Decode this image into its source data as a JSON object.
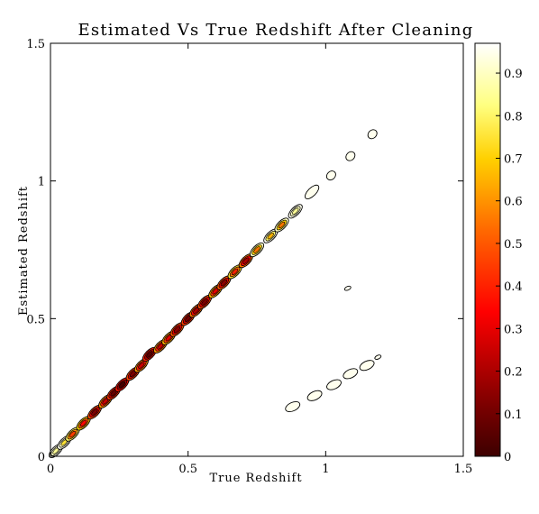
{
  "chart_data": {
    "type": "heatmap",
    "title": "Estimated Vs True Redshift After Cleaning",
    "xlabel": "True Redshift",
    "ylabel": "Estimated Redshift",
    "xlim": [
      0,
      1.5
    ],
    "ylim": [
      0,
      1.5
    ],
    "x_ticks": [
      0,
      0.5,
      1,
      1.5
    ],
    "x_tick_labels": [
      "0",
      "0.5",
      "1",
      "1.5"
    ],
    "y_ticks": [
      0,
      0.5,
      1,
      1.5
    ],
    "y_tick_labels": [
      "0",
      "0.5",
      "1",
      "1.5"
    ],
    "colormap": "hot",
    "colorbar": {
      "min": 0,
      "max": 0.97,
      "ticks": [
        0,
        0.1,
        0.2,
        0.3,
        0.4,
        0.5,
        0.6,
        0.7,
        0.8,
        0.9
      ],
      "tick_labels": [
        "0",
        "0.1",
        "0.2",
        "0.3",
        "0.4",
        "0.5",
        "0.6",
        "0.7",
        "0.8",
        "0.9"
      ]
    },
    "contour_regions": [
      {
        "x": 0.02,
        "y": 0.02,
        "level": 0.85
      },
      {
        "x": 0.05,
        "y": 0.05,
        "level": 0.75
      },
      {
        "x": 0.08,
        "y": 0.08,
        "level": 0.45
      },
      {
        "x": 0.12,
        "y": 0.12,
        "level": 0.35
      },
      {
        "x": 0.16,
        "y": 0.16,
        "level": 0.12
      },
      {
        "x": 0.2,
        "y": 0.2,
        "level": 0.25
      },
      {
        "x": 0.23,
        "y": 0.23,
        "level": 0.08
      },
      {
        "x": 0.26,
        "y": 0.26,
        "level": 0.02
      },
      {
        "x": 0.3,
        "y": 0.3,
        "level": 0.12
      },
      {
        "x": 0.33,
        "y": 0.33,
        "level": 0.25
      },
      {
        "x": 0.36,
        "y": 0.37,
        "level": 0.05
      },
      {
        "x": 0.4,
        "y": 0.4,
        "level": 0.25
      },
      {
        "x": 0.43,
        "y": 0.43,
        "level": 0.3
      },
      {
        "x": 0.46,
        "y": 0.46,
        "level": 0.15
      },
      {
        "x": 0.5,
        "y": 0.5,
        "level": 0.1
      },
      {
        "x": 0.53,
        "y": 0.53,
        "level": 0.2
      },
      {
        "x": 0.56,
        "y": 0.56,
        "level": 0.12
      },
      {
        "x": 0.6,
        "y": 0.6,
        "level": 0.3
      },
      {
        "x": 0.63,
        "y": 0.63,
        "level": 0.15
      },
      {
        "x": 0.67,
        "y": 0.67,
        "level": 0.4
      },
      {
        "x": 0.71,
        "y": 0.71,
        "level": 0.2
      },
      {
        "x": 0.75,
        "y": 0.75,
        "level": 0.55
      },
      {
        "x": 0.8,
        "y": 0.8,
        "level": 0.65
      },
      {
        "x": 0.84,
        "y": 0.84,
        "level": 0.55
      },
      {
        "x": 0.89,
        "y": 0.89,
        "level": 0.85
      },
      {
        "x": 0.95,
        "y": 0.96,
        "level": 0.9
      },
      {
        "x": 1.02,
        "y": 1.02,
        "level": 0.92
      },
      {
        "x": 1.09,
        "y": 1.09,
        "level": 0.92
      },
      {
        "x": 1.17,
        "y": 1.17,
        "level": 0.95
      },
      {
        "x": 1.08,
        "y": 0.61,
        "level": 0.95
      },
      {
        "x": 0.88,
        "y": 0.18,
        "level": 0.92
      },
      {
        "x": 0.96,
        "y": 0.22,
        "level": 0.92
      },
      {
        "x": 1.03,
        "y": 0.26,
        "level": 0.92
      },
      {
        "x": 1.09,
        "y": 0.3,
        "level": 0.92
      },
      {
        "x": 1.15,
        "y": 0.33,
        "level": 0.93
      },
      {
        "x": 1.19,
        "y": 0.36,
        "level": 0.94
      }
    ]
  }
}
